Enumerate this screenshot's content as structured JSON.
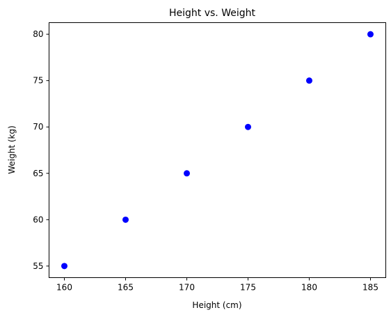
{
  "chart_data": {
    "type": "scatter",
    "title": "Height vs. Weight",
    "xlabel": "Height (cm)",
    "ylabel": "Weight (kg)",
    "x": [
      160,
      165,
      170,
      175,
      180,
      185
    ],
    "y": [
      55,
      60,
      65,
      70,
      75,
      80
    ],
    "xlim": [
      158.75,
      186.25
    ],
    "ylim": [
      53.75,
      81.25
    ],
    "xticks": [
      160,
      165,
      170,
      175,
      180,
      185
    ],
    "yticks": [
      55,
      60,
      65,
      70,
      75,
      80
    ],
    "xtick_labels": [
      "160",
      "165",
      "170",
      "175",
      "180",
      "185"
    ],
    "ytick_labels": [
      "55",
      "60",
      "65",
      "70",
      "75",
      "80"
    ],
    "marker_color": "#0000ff",
    "grid": false,
    "legend": "none"
  }
}
